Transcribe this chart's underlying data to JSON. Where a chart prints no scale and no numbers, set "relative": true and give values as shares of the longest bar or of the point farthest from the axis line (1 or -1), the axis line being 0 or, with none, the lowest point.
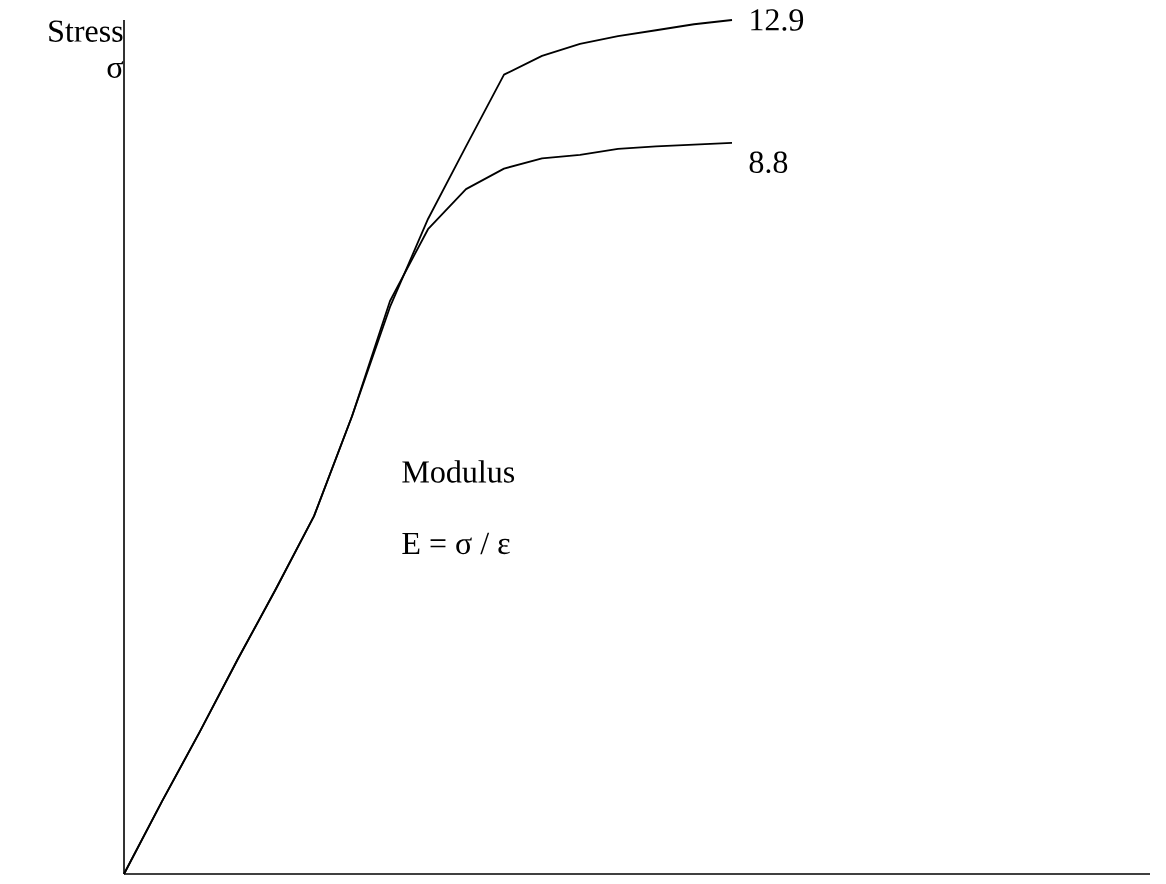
{
  "chart_data": {
    "type": "line",
    "relative": true,
    "ylabel": "Stress σ",
    "annotations": [
      "Modulus",
      "E = σ / ε"
    ],
    "categories": [
      null,
      null,
      null,
      null,
      null,
      null,
      null,
      null,
      null,
      null,
      null,
      null,
      null,
      null,
      null,
      null,
      null,
      null,
      null,
      null,
      null,
      null,
      null,
      null,
      null,
      null,
      null,
      null
    ],
    "series": [
      {
        "name": "12.9",
        "color": "#000000",
        "values": [
          0,
          0.085,
          0.167,
          0.252,
          0.334,
          0.419,
          0.536,
          0.664,
          0.767,
          0.852,
          0.936,
          0.958,
          0.972,
          0.981,
          0.988,
          0.995,
          1,
          null,
          null,
          null,
          null,
          null,
          null,
          null,
          null,
          null,
          null,
          null
        ]
      },
      {
        "name": "8.8",
        "color": "#000000",
        "values": [
          0,
          0.085,
          0.167,
          0.252,
          0.334,
          0.419,
          0.536,
          0.671,
          0.755,
          0.802,
          0.826,
          0.838,
          0.842,
          0.849,
          0.852,
          0.854,
          0.856,
          null,
          null,
          null,
          null,
          null,
          null,
          null,
          null,
          null,
          null,
          null
        ]
      }
    ]
  }
}
